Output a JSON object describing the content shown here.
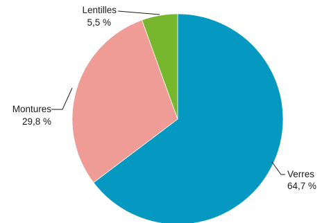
{
  "chart_data": {
    "type": "pie",
    "title": "",
    "slices": [
      {
        "label": "Verres",
        "value": 64.7,
        "value_label": "64,7 %",
        "color": "#0599c2"
      },
      {
        "label": "Montures",
        "value": 29.8,
        "value_label": "29,8 %",
        "color": "#ef9b96"
      },
      {
        "label": "Lentilles",
        "value": 5.5,
        "value_label": "5,5 %",
        "color": "#77b72e"
      }
    ],
    "start": "12 o'clock",
    "direction": "clockwise",
    "legend": "none",
    "labels": "outside with leader lines"
  }
}
